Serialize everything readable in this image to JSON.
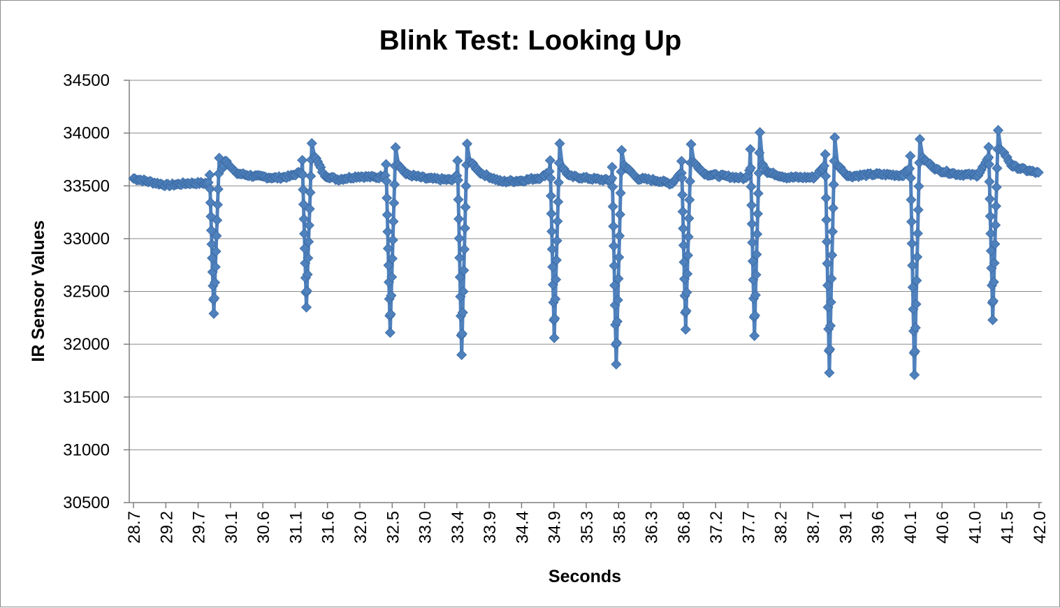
{
  "chart_data": {
    "type": "line",
    "title": "Blink Test: Looking Up",
    "xlabel": "Seconds",
    "ylabel": "IR Sensor Values",
    "ylim": [
      30500,
      34500
    ],
    "y_ticks": [
      30500,
      31000,
      31500,
      32000,
      32500,
      33000,
      33500,
      34000,
      34500
    ],
    "x_tick_labels": [
      "28.7",
      "29.2",
      "29.7",
      "30.1",
      "30.6",
      "31.1",
      "31.6",
      "32.0",
      "32.5",
      "33.0",
      "33.4",
      "33.9",
      "34.4",
      "34.9",
      "35.3",
      "35.8",
      "36.3",
      "36.8",
      "37.2",
      "37.7",
      "38.2",
      "38.7",
      "39.1",
      "39.6",
      "40.1",
      "40.6",
      "41.0",
      "41.5",
      "42.0"
    ],
    "xlim": [
      28.7,
      42.0
    ],
    "grid": true,
    "legend": "none",
    "series_color": "#4f81bd",
    "marker": "diamond",
    "baseline": [
      [
        28.7,
        33570
      ],
      [
        29.0,
        33530
      ],
      [
        29.2,
        33505
      ],
      [
        29.5,
        33525
      ],
      [
        29.8,
        33525
      ],
      [
        29.95,
        33560
      ],
      [
        30.05,
        33750
      ],
      [
        30.2,
        33620
      ],
      [
        30.5,
        33590
      ],
      [
        30.8,
        33575
      ],
      [
        31.0,
        33590
      ],
      [
        31.2,
        33640
      ],
      [
        31.35,
        33800
      ],
      [
        31.5,
        33600
      ],
      [
        31.7,
        33560
      ],
      [
        32.0,
        33590
      ],
      [
        32.3,
        33580
      ],
      [
        32.45,
        33620
      ],
      [
        32.55,
        33740
      ],
      [
        32.7,
        33610
      ],
      [
        33.0,
        33570
      ],
      [
        33.4,
        33555
      ],
      [
        33.6,
        33760
      ],
      [
        33.8,
        33620
      ],
      [
        34.1,
        33540
      ],
      [
        34.4,
        33550
      ],
      [
        34.7,
        33580
      ],
      [
        34.95,
        33720
      ],
      [
        35.1,
        33590
      ],
      [
        35.4,
        33570
      ],
      [
        35.7,
        33550
      ],
      [
        35.9,
        33700
      ],
      [
        36.1,
        33570
      ],
      [
        36.4,
        33550
      ],
      [
        36.6,
        33520
      ],
      [
        36.9,
        33740
      ],
      [
        37.1,
        33610
      ],
      [
        37.4,
        33590
      ],
      [
        37.7,
        33570
      ],
      [
        37.85,
        33840
      ],
      [
        38.0,
        33630
      ],
      [
        38.3,
        33580
      ],
      [
        38.7,
        33580
      ],
      [
        38.95,
        33760
      ],
      [
        39.2,
        33590
      ],
      [
        39.6,
        33610
      ],
      [
        40.0,
        33600
      ],
      [
        40.25,
        33780
      ],
      [
        40.5,
        33650
      ],
      [
        40.8,
        33610
      ],
      [
        41.1,
        33600
      ],
      [
        41.3,
        33800
      ],
      [
        41.45,
        33850
      ],
      [
        41.6,
        33690
      ],
      [
        41.8,
        33650
      ],
      [
        42.0,
        33620
      ]
    ],
    "blinks": [
      {
        "x": 29.88,
        "min": 32290
      },
      {
        "x": 31.24,
        "min": 32350
      },
      {
        "x": 32.47,
        "min": 32110
      },
      {
        "x": 33.52,
        "min": 31900
      },
      {
        "x": 34.88,
        "min": 32060
      },
      {
        "x": 35.79,
        "min": 31810
      },
      {
        "x": 36.81,
        "min": 32140
      },
      {
        "x": 37.82,
        "min": 32080
      },
      {
        "x": 38.92,
        "min": 31730
      },
      {
        "x": 40.17,
        "min": 31710
      },
      {
        "x": 41.32,
        "min": 32230
      }
    ]
  }
}
